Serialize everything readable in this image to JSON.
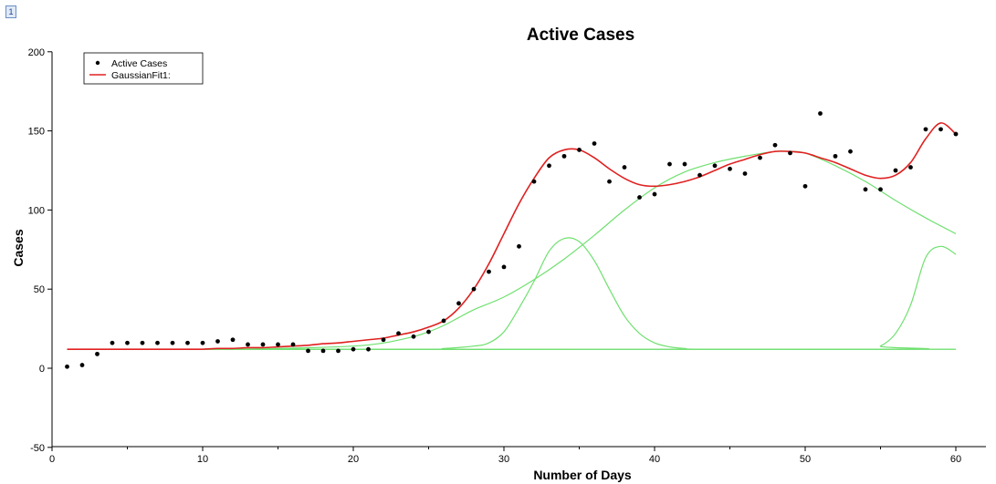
{
  "corner_badge": "1",
  "colors": {
    "fit": "#e02020",
    "component": "#6fe06f",
    "baseline": "#6fe06f",
    "points": "#000000",
    "axis": "#000000"
  },
  "chart_data": {
    "type": "scatter",
    "title": "Active Cases",
    "xlabel": "Number of Days",
    "ylabel": "Cases",
    "xlim": [
      0,
      62
    ],
    "ylim": [
      -50,
      200
    ],
    "xticks": [
      0,
      10,
      20,
      30,
      40,
      50,
      60
    ],
    "yticks": [
      -50,
      0,
      50,
      100,
      150,
      200
    ],
    "grid": false,
    "legend_position": "top-left",
    "legend": [
      {
        "label": "Active Cases",
        "marker": "dot"
      },
      {
        "label": "GaussianFit1:",
        "marker": "line"
      }
    ],
    "series": [
      {
        "name": "Active Cases",
        "kind": "scatter",
        "x": [
          1,
          2,
          3,
          4,
          5,
          6,
          7,
          8,
          9,
          10,
          11,
          12,
          13,
          14,
          15,
          16,
          17,
          18,
          19,
          20,
          21,
          22,
          23,
          24,
          25,
          26,
          27,
          28,
          29,
          30,
          31,
          32,
          33,
          34,
          35,
          36,
          37,
          38,
          39,
          40,
          41,
          42,
          43,
          44,
          45,
          46,
          47,
          48,
          49,
          50,
          51,
          52,
          53,
          54,
          55,
          56,
          57,
          58,
          59,
          60
        ],
        "y": [
          1,
          2,
          9,
          16,
          16,
          16,
          16,
          16,
          16,
          16,
          17,
          18,
          15,
          15,
          15,
          15,
          11,
          11,
          11,
          12,
          12,
          18,
          22,
          20,
          23,
          30,
          41,
          50,
          61,
          64,
          77,
          118,
          128,
          134,
          138,
          142,
          118,
          127,
          108,
          110,
          129,
          129,
          122,
          128,
          126,
          123,
          133,
          141,
          136,
          115,
          161,
          134,
          137,
          113,
          113,
          125,
          127,
          151,
          151,
          148
        ]
      },
      {
        "name": "GaussianFit1:",
        "kind": "line",
        "x": [
          1,
          2,
          3,
          4,
          5,
          6,
          7,
          8,
          9,
          10,
          11,
          12,
          13,
          14,
          15,
          16,
          17,
          18,
          19,
          20,
          21,
          22,
          23,
          24,
          25,
          26,
          27,
          28,
          29,
          30,
          31,
          32,
          33,
          34,
          35,
          36,
          37,
          38,
          39,
          40,
          41,
          42,
          43,
          44,
          45,
          46,
          47,
          48,
          49,
          50,
          51,
          52,
          53,
          54,
          55,
          56,
          57,
          58,
          59,
          60
        ],
        "y": [
          12,
          12,
          12,
          12,
          12,
          12,
          12,
          12,
          12,
          12,
          12.5,
          12.5,
          13,
          13,
          13.5,
          14,
          14.5,
          15.5,
          16,
          17,
          18,
          19,
          21,
          23,
          26,
          30,
          38,
          50,
          66,
          85,
          104,
          120,
          133,
          138,
          138,
          133,
          126,
          120,
          116,
          115,
          116,
          118,
          121,
          125,
          129,
          132,
          135,
          137,
          137,
          136,
          133,
          130,
          126,
          122,
          120,
          122,
          130,
          145,
          155,
          148
        ]
      }
    ],
    "components": [
      {
        "x": [
          1,
          5,
          10,
          15,
          20,
          22,
          24,
          25,
          26,
          27,
          28,
          30,
          32,
          34,
          36,
          38,
          40,
          42,
          44,
          46,
          48,
          49,
          50,
          52,
          54,
          56,
          58,
          60
        ],
        "y": [
          12,
          12,
          12,
          12.5,
          14,
          16,
          20,
          23,
          27,
          32,
          37,
          45,
          56,
          69,
          84,
          100,
          114,
          124,
          130,
          134,
          137,
          137,
          136,
          128,
          118,
          106,
          95,
          85
        ]
      },
      {
        "x": [
          1,
          24,
          26,
          28,
          29,
          30,
          31,
          32,
          33,
          34,
          35,
          36,
          37,
          38,
          39,
          40,
          41,
          42,
          44,
          60
        ],
        "y": [
          12,
          12,
          12.5,
          14,
          16,
          23,
          38,
          55,
          74,
          82,
          80,
          68,
          50,
          33,
          22,
          16,
          13.5,
          12.5,
          12,
          12
        ]
      },
      {
        "x": [
          1,
          54,
          55,
          56,
          57,
          58,
          59,
          60
        ],
        "y": [
          12,
          12,
          14,
          22,
          40,
          70,
          77,
          72
        ]
      },
      {
        "x": [
          1,
          60
        ],
        "y": [
          12,
          12
        ]
      }
    ]
  }
}
